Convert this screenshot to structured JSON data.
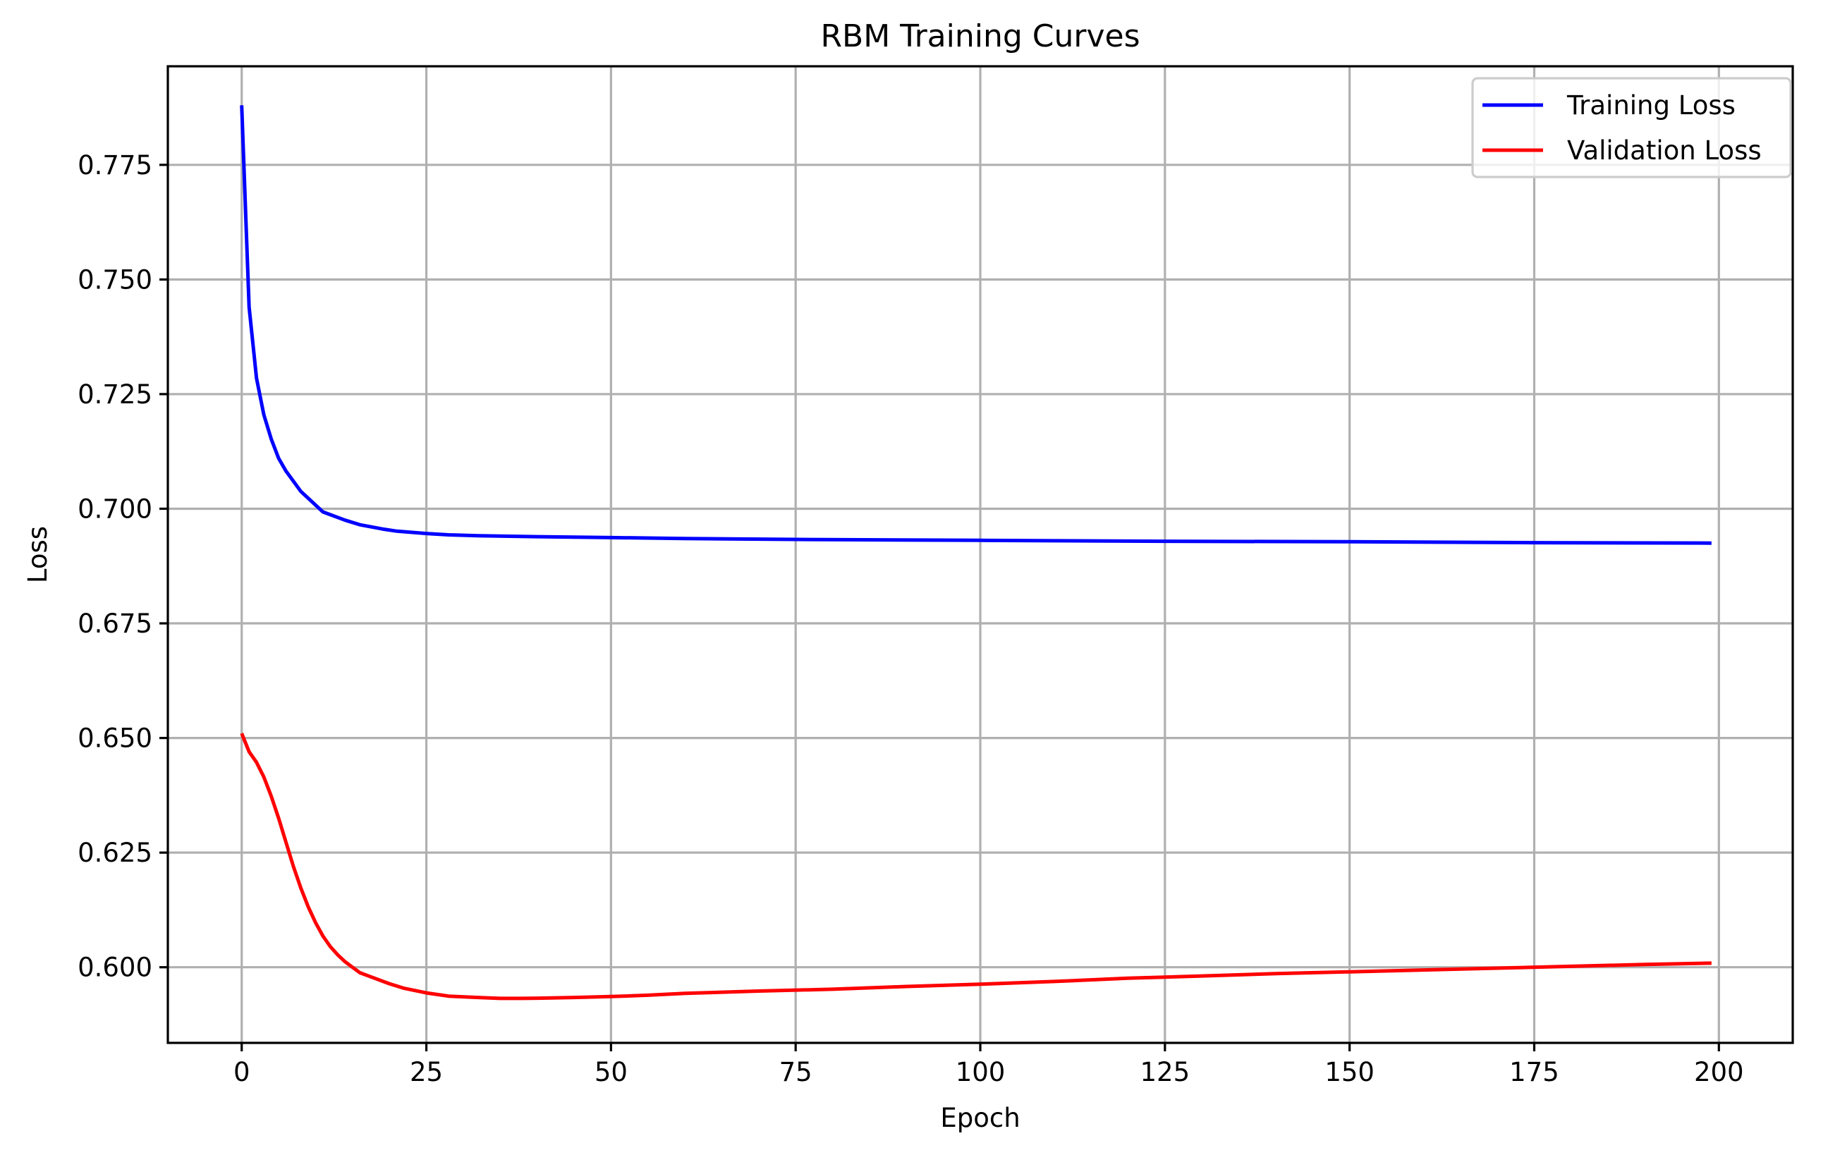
{
  "chart_data": {
    "type": "line",
    "title": "RBM Training Curves",
    "xlabel": "Epoch",
    "ylabel": "Loss",
    "xlim": [
      -10,
      210
    ],
    "ylim": [
      0.5835,
      0.7965
    ],
    "x_ticks": [
      0,
      25,
      50,
      75,
      100,
      125,
      150,
      175,
      200
    ],
    "y_ticks": [
      0.6,
      0.625,
      0.65,
      0.675,
      0.7,
      0.725,
      0.75,
      0.775
    ],
    "x_tick_labels": [
      "0",
      "25",
      "50",
      "75",
      "100",
      "125",
      "150",
      "175",
      "200"
    ],
    "y_tick_labels": [
      "0.600",
      "0.625",
      "0.650",
      "0.675",
      "0.700",
      "0.725",
      "0.750",
      "0.775"
    ],
    "grid": true,
    "legend_position": "top-right",
    "series": [
      {
        "name": "Training Loss",
        "color": "#0000ff",
        "x": [
          0,
          1,
          2,
          3,
          4,
          5,
          6,
          8,
          11,
          14,
          16,
          19,
          21,
          25,
          28,
          32,
          40,
          50,
          60,
          75,
          100,
          125,
          150,
          175,
          199
        ],
        "y": [
          0.788,
          0.744,
          0.7285,
          0.7205,
          0.7152,
          0.711,
          0.7082,
          0.7038,
          0.6993,
          0.6975,
          0.6965,
          0.6956,
          0.6951,
          0.6946,
          0.6943,
          0.6941,
          0.6939,
          0.6937,
          0.6935,
          0.6933,
          0.6931,
          0.6929,
          0.6928,
          0.6926,
          0.6925
        ]
      },
      {
        "name": "Validation Loss",
        "color": "#ff0000",
        "x": [
          0,
          1,
          2,
          3,
          4,
          5,
          6,
          7,
          8,
          9,
          10,
          11,
          12,
          13,
          14,
          15,
          16,
          18,
          20,
          22,
          25,
          28,
          32,
          35,
          38,
          42,
          45,
          50,
          55,
          60,
          70,
          80,
          90,
          100,
          110,
          120,
          130,
          140,
          150,
          160,
          170,
          180,
          190,
          199
        ],
        "y": [
          0.651,
          0.647,
          0.6447,
          0.6415,
          0.6373,
          0.6325,
          0.6272,
          0.622,
          0.6173,
          0.6132,
          0.6097,
          0.6068,
          0.6045,
          0.6027,
          0.6012,
          0.6,
          0.5988,
          0.5976,
          0.5964,
          0.5954,
          0.5944,
          0.5937,
          0.5934,
          0.5932,
          0.5932,
          0.5933,
          0.5934,
          0.5936,
          0.5939,
          0.5943,
          0.5948,
          0.5952,
          0.5958,
          0.5963,
          0.5969,
          0.5976,
          0.5981,
          0.5986,
          0.599,
          0.5994,
          0.5998,
          0.6002,
          0.6006,
          0.6009
        ]
      }
    ]
  }
}
